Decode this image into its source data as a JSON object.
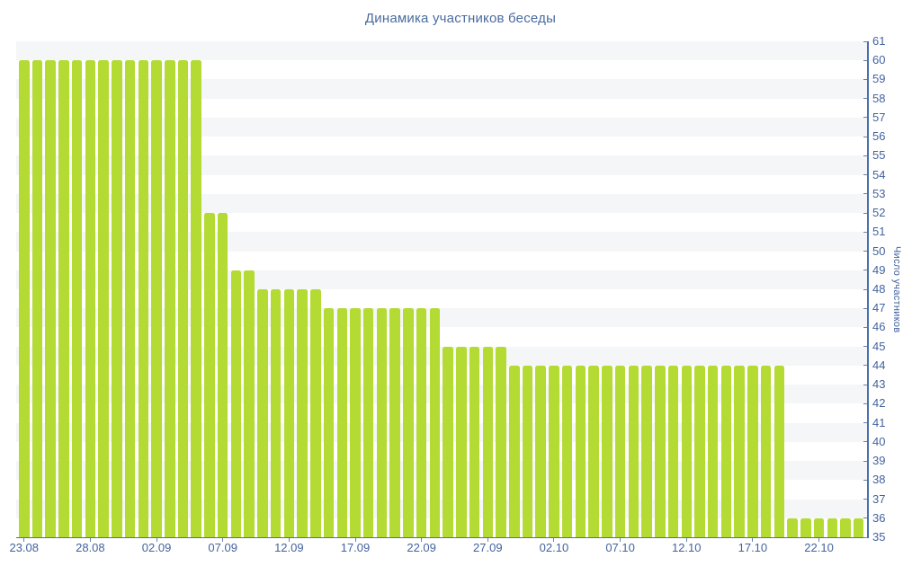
{
  "chart_data": {
    "type": "bar",
    "title": "Динамика участников беседы",
    "xlabel": "",
    "ylabel": "Число участников",
    "ylim": [
      35,
      61
    ],
    "y_tick_step": 1,
    "y_tick_labels": [
      "35",
      "36",
      "37",
      "38",
      "39",
      "40",
      "41",
      "42",
      "43",
      "44",
      "45",
      "46",
      "47",
      "48",
      "49",
      "50",
      "51",
      "52",
      "53",
      "54",
      "55",
      "56",
      "57",
      "58",
      "59",
      "60",
      "61"
    ],
    "x": [
      "23.08",
      "24.08",
      "25.08",
      "26.08",
      "27.08",
      "28.08",
      "29.08",
      "30.08",
      "31.08",
      "01.09",
      "02.09",
      "03.09",
      "04.09",
      "05.09",
      "06.09",
      "07.09",
      "08.09",
      "09.09",
      "10.09",
      "11.09",
      "12.09",
      "13.09",
      "14.09",
      "15.09",
      "16.09",
      "17.09",
      "18.09",
      "19.09",
      "20.09",
      "21.09",
      "22.09",
      "23.09",
      "24.09",
      "25.09",
      "26.09",
      "27.09",
      "28.09",
      "29.09",
      "30.09",
      "01.10",
      "02.10",
      "03.10",
      "04.10",
      "05.10",
      "06.10",
      "07.10",
      "08.10",
      "09.10",
      "10.10",
      "11.10",
      "12.10",
      "13.10",
      "14.10",
      "15.10",
      "16.10",
      "17.10",
      "18.10",
      "19.10",
      "20.10",
      "21.10",
      "22.10",
      "23.10",
      "24.10",
      "25.10"
    ],
    "values": [
      60,
      60,
      60,
      60,
      60,
      60,
      60,
      60,
      60,
      60,
      60,
      60,
      60,
      60,
      52,
      52,
      49,
      49,
      48,
      48,
      48,
      48,
      48,
      47,
      47,
      47,
      47,
      47,
      47,
      47,
      47,
      47,
      45,
      45,
      45,
      45,
      45,
      44,
      44,
      44,
      44,
      44,
      44,
      44,
      44,
      44,
      44,
      44,
      44,
      44,
      44,
      44,
      44,
      44,
      44,
      44,
      44,
      44,
      36,
      36,
      36,
      36,
      36,
      36
    ],
    "x_tick_labels": [
      "23.08",
      "28.08",
      "02.09",
      "07.09",
      "12.09",
      "17.09",
      "22.09",
      "27.09",
      "02.10",
      "07.10",
      "12.10",
      "17.10",
      "22.10"
    ],
    "x_tick_day_indices": [
      0,
      5,
      10,
      15,
      20,
      25,
      30,
      35,
      40,
      45,
      50,
      55,
      60
    ],
    "legend": "none",
    "grid": "horizontal-zebra-stripes",
    "colors": {
      "bar": "#b4da34",
      "stripe": "#f5f6f7",
      "axis_line": "#4a6fae",
      "tick_mark": "#6c81a6",
      "tick_text": "#43639f",
      "title_text": "#4a6b9e",
      "background": "#ffffff"
    }
  }
}
